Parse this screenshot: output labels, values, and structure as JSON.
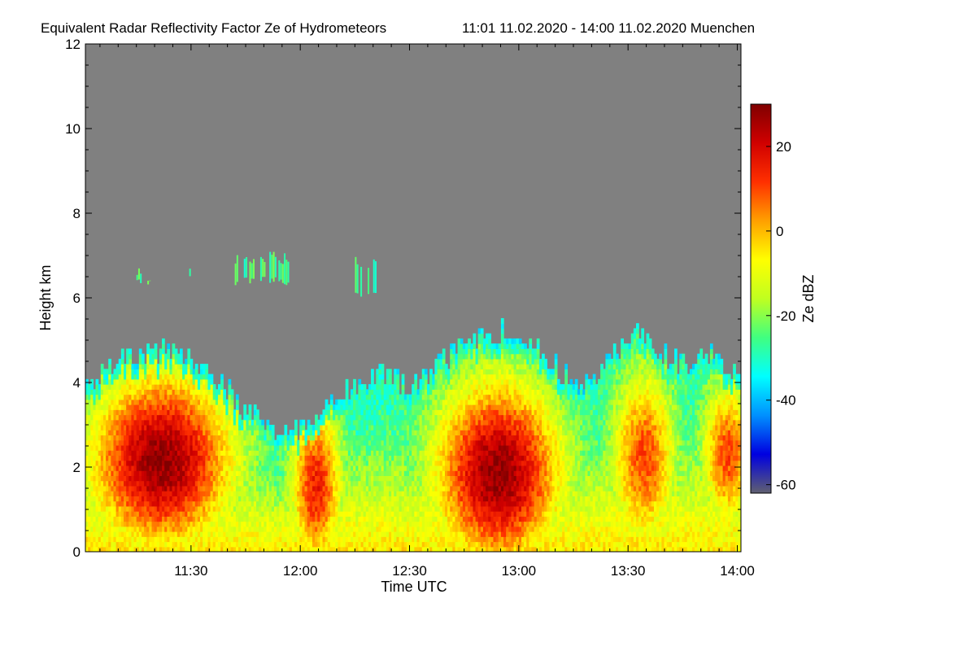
{
  "chart_data": {
    "type": "heatmap",
    "title": "Equivalent Radar Reflectivity Factor Ze of Hydrometeors",
    "subtitle": "11:01 11.02.2020 - 14:00 11.02.2020 Muenchen",
    "xlabel": "Time UTC",
    "ylabel": "Height km",
    "x_ticks": [
      {
        "label": "11:30",
        "minutes": 690
      },
      {
        "label": "12:00",
        "minutes": 720
      },
      {
        "label": "12:30",
        "minutes": 750
      },
      {
        "label": "13:00",
        "minutes": 780
      },
      {
        "label": "13:30",
        "minutes": 810
      },
      {
        "label": "14:00",
        "minutes": 840
      }
    ],
    "xlim_minutes": [
      661,
      841
    ],
    "y_ticks": [
      0,
      2,
      4,
      6,
      8,
      10,
      12
    ],
    "ylim": [
      0,
      12
    ],
    "colorbar": {
      "label": "Ze dBZ",
      "range": [
        -62,
        30
      ],
      "ticks": [
        -60,
        -40,
        -20,
        0,
        20
      ],
      "colormap": [
        "#606070",
        "#0000e0",
        "#0090ff",
        "#00ffff",
        "#40ff80",
        "#c0ff20",
        "#ffff00",
        "#ffa000",
        "#ff3000",
        "#d00000",
        "#800000"
      ]
    },
    "background_color": "#808080",
    "echo_top_km": [
      {
        "t": 661,
        "h": 3.9
      },
      {
        "t": 667,
        "h": 4.3
      },
      {
        "t": 675,
        "h": 4.6
      },
      {
        "t": 683,
        "h": 4.7
      },
      {
        "t": 691,
        "h": 4.4
      },
      {
        "t": 697,
        "h": 4.1
      },
      {
        "t": 702,
        "h": 3.5
      },
      {
        "t": 707,
        "h": 3.1
      },
      {
        "t": 712,
        "h": 2.8
      },
      {
        "t": 716,
        "h": 2.6
      },
      {
        "t": 720,
        "h": 3.0
      },
      {
        "t": 725,
        "h": 3.2
      },
      {
        "t": 730,
        "h": 3.6
      },
      {
        "t": 736,
        "h": 4.0
      },
      {
        "t": 742,
        "h": 4.2
      },
      {
        "t": 748,
        "h": 3.9
      },
      {
        "t": 753,
        "h": 4.0
      },
      {
        "t": 759,
        "h": 4.5
      },
      {
        "t": 766,
        "h": 4.9
      },
      {
        "t": 772,
        "h": 5.1
      },
      {
        "t": 778,
        "h": 5.2
      },
      {
        "t": 784,
        "h": 4.9
      },
      {
        "t": 790,
        "h": 4.3
      },
      {
        "t": 796,
        "h": 3.8
      },
      {
        "t": 802,
        "h": 4.3
      },
      {
        "t": 808,
        "h": 4.9
      },
      {
        "t": 814,
        "h": 5.1
      },
      {
        "t": 820,
        "h": 4.6
      },
      {
        "t": 826,
        "h": 4.3
      },
      {
        "t": 832,
        "h": 4.7
      },
      {
        "t": 837,
        "h": 4.4
      },
      {
        "t": 841,
        "h": 3.9
      }
    ],
    "echo_cores": [
      {
        "t_start": 663,
        "t_end": 700,
        "h_min": 0.4,
        "h_max": 3.8,
        "ze_max": 28
      },
      {
        "t_start": 720,
        "t_end": 728,
        "h_min": 0.0,
        "h_max": 3.0,
        "ze_max": 15
      },
      {
        "t_start": 758,
        "t_end": 790,
        "h_min": 0.0,
        "h_max": 3.6,
        "ze_max": 28
      },
      {
        "t_start": 808,
        "t_end": 820,
        "h_min": 0.5,
        "h_max": 3.8,
        "ze_max": 10
      },
      {
        "t_start": 833,
        "t_end": 841,
        "h_min": 1.0,
        "h_max": 3.5,
        "ze_max": 10
      }
    ],
    "upper_echo_fragments": [
      {
        "t_start": 675,
        "t_end": 679,
        "h_min": 6.3,
        "h_max": 6.7
      },
      {
        "t_start": 687,
        "t_end": 690,
        "h_min": 6.5,
        "h_max": 6.7
      },
      {
        "t_start": 702,
        "t_end": 718,
        "h_min": 6.3,
        "h_max": 7.1
      },
      {
        "t_start": 735,
        "t_end": 741,
        "h_min": 6.0,
        "h_max": 7.0
      }
    ]
  }
}
